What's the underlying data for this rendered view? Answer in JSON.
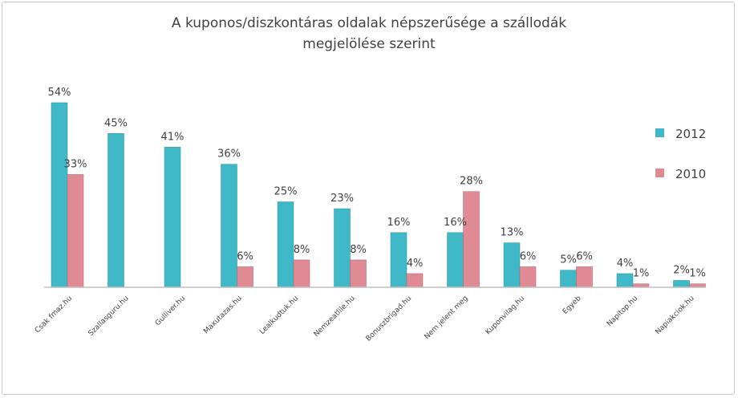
{
  "chart_data": {
    "type": "bar",
    "title_line1": "A kuponos/diszkontáras oldalak népszerűsége a szállodák",
    "title_line2": "megjelölése szerint",
    "categories": [
      "Csak fmaz.hu",
      "Szallasguru.hu",
      "Gulliver.hu",
      "Maxutazas.hu",
      "Lealkudtuk.hu",
      "Nemzeatlile.hu",
      "Bonuszbrigad.hu",
      "Nem jelent meg",
      "Kuponvilag.hu",
      "Egyeb",
      "Napitop.hu",
      "Napiakciok.hu"
    ],
    "series": [
      {
        "name": "2012",
        "color": "#3fb8c8",
        "values": [
          54,
          45,
          41,
          36,
          25,
          23,
          16,
          16,
          13,
          5,
          4,
          2
        ],
        "labels": [
          "54%",
          "45%",
          "41%",
          "36%",
          "25%",
          "23%",
          "16%",
          "16%",
          "13%",
          "5%",
          "4%",
          "2%"
        ]
      },
      {
        "name": "2010",
        "color": "#e08a93",
        "values": [
          33,
          null,
          null,
          6,
          8,
          8,
          4,
          28,
          6,
          6,
          1,
          1
        ],
        "labels": [
          "33%",
          "",
          "",
          "6%",
          "8%",
          "8%",
          "4%",
          "28%",
          "6%",
          "6%",
          "1%",
          "1%"
        ]
      }
    ],
    "legend": {
      "position": "right",
      "entries": [
        "2012",
        "2010"
      ]
    },
    "ylim": [
      0,
      54
    ],
    "grid": false
  }
}
